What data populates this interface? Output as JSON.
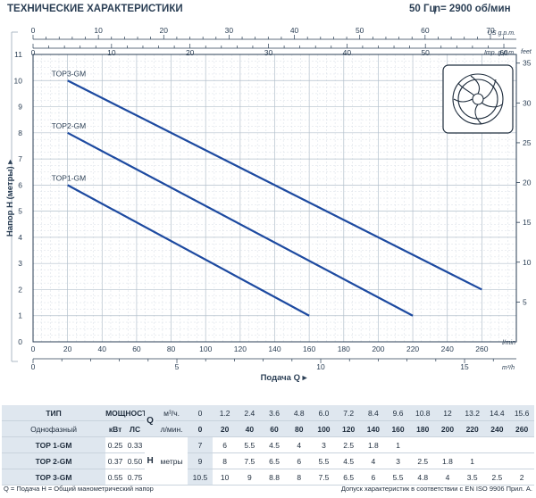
{
  "header": {
    "title": "ТЕХНИЧЕСКИЕ ХАРАКТЕРИСТИКИ",
    "frequency": "50 Гц",
    "speed": "n= 2900 об/мин"
  },
  "chart_data": {
    "type": "line",
    "ylabel": "Напор H (метры)",
    "xlabel": "Подача Q",
    "x_unit": "l/min",
    "x_unit_m3h": "m³/h",
    "y2_unit": "feet",
    "top_units": [
      "US g.p.m.",
      "Imp. g.p.m."
    ],
    "xlim": [
      0,
      280
    ],
    "ylim": [
      0,
      11
    ],
    "x_ticks": [
      20,
      40,
      60,
      80,
      100,
      120,
      140,
      160,
      180,
      200,
      220,
      240,
      260
    ],
    "y_ticks": [
      1,
      2,
      3,
      4,
      5,
      6,
      7,
      8,
      9,
      10,
      11
    ],
    "feet_ticks": [
      5,
      10,
      15,
      20,
      25,
      30,
      35
    ],
    "us_gpm_ticks": [
      0,
      10,
      20,
      30,
      40,
      50,
      60,
      70
    ],
    "imp_gpm_ticks": [
      0,
      10,
      20,
      30,
      40,
      50,
      60
    ],
    "m3h_ticks": [
      0,
      5,
      10,
      15
    ],
    "series": [
      {
        "name": "TOP3-GM",
        "x": [
          20,
          260
        ],
        "y": [
          10,
          2
        ],
        "color": "#1d4aa0"
      },
      {
        "name": "TOP2-GM",
        "x": [
          20,
          220
        ],
        "y": [
          8,
          1
        ],
        "color": "#1d4aa0"
      },
      {
        "name": "TOP1-GM",
        "x": [
          20,
          160
        ],
        "y": [
          6,
          1
        ],
        "color": "#1d4aa0"
      }
    ]
  },
  "table": {
    "type_label": "ТИП",
    "power_label": "МОЩНОСТЬ",
    "phase_label": "Однофазный",
    "kw_label": "кВт",
    "hp_label": "ЛС",
    "q_label": "Q",
    "m3h_label": "м³/ч.",
    "lmin_label": "л/мин.",
    "h_label": "H",
    "meters_label": "метры",
    "m3h_values": [
      "0",
      "1.2",
      "2.4",
      "3.6",
      "4.8",
      "6.0",
      "7.2",
      "8.4",
      "9.6",
      "10.8",
      "12",
      "13.2",
      "14.4",
      "15.6"
    ],
    "lmin_values": [
      "0",
      "20",
      "40",
      "60",
      "80",
      "100",
      "120",
      "140",
      "160",
      "180",
      "200",
      "220",
      "240",
      "260"
    ],
    "rows": [
      {
        "model": "TOP 1-GM",
        "kw": "0.25",
        "hp": "0.33",
        "h": [
          "7",
          "6",
          "5.5",
          "4.5",
          "4",
          "3",
          "2.5",
          "1.8",
          "1",
          "",
          "",
          "",
          "",
          ""
        ]
      },
      {
        "model": "TOP 2-GM",
        "kw": "0.37",
        "hp": "0.50",
        "h": [
          "9",
          "8",
          "7.5",
          "6.5",
          "6",
          "5.5",
          "4.5",
          "4",
          "3",
          "2.5",
          "1.8",
          "1",
          "",
          ""
        ]
      },
      {
        "model": "TOP 3-GM",
        "kw": "0.55",
        "hp": "0.75",
        "h": [
          "10.5",
          "10",
          "9",
          "8.8",
          "8",
          "7.5",
          "6.5",
          "6",
          "5.5",
          "4.8",
          "4",
          "3.5",
          "2.5",
          "2"
        ]
      }
    ]
  },
  "footer": {
    "left": "Q = Подача  H = Общий манометрический напор",
    "right": "Допуск характеристик в соответствии с EN ISO 9906 Прил. А."
  }
}
